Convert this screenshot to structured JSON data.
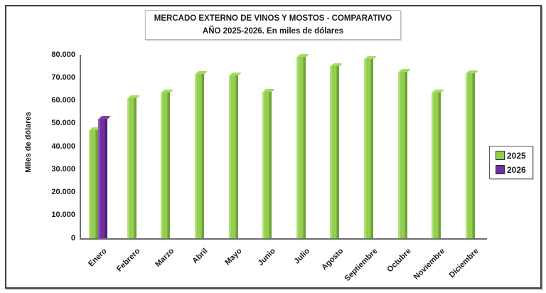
{
  "chart_data": {
    "type": "bar",
    "title": "MERCADO EXTERNO DE VINOS Y MOSTOS - COMPARATIVO",
    "subtitle": "AÑO 2025-2026. En miles de dólares",
    "ylabel": "Miles de dólares",
    "xlabel": "",
    "categories": [
      "Enero",
      "Febrero",
      "Marzo",
      "Abril",
      "Mayo",
      "Junio",
      "Julio",
      "Agosto",
      "Septiembre",
      "Octubre",
      "Noviembre",
      "Diciembre"
    ],
    "series": [
      {
        "name": "2025",
        "color": "#92d050",
        "values": [
          47000,
          61000,
          63500,
          71500,
          71000,
          64000,
          79000,
          75000,
          78000,
          72500,
          63500,
          72000
        ]
      },
      {
        "name": "2026",
        "color": "#7030a0",
        "values": [
          52000,
          null,
          null,
          null,
          null,
          null,
          null,
          null,
          null,
          null,
          null,
          null
        ]
      }
    ],
    "ylim": [
      0,
      80000
    ],
    "ytick_step": 10000,
    "ytick_labels": [
      "0",
      "10.000",
      "20.000",
      "30.000",
      "40.000",
      "50.000",
      "60.000",
      "70.000",
      "80.000"
    ],
    "grid": false,
    "bar_style": "3d-cylinder-like beveled columns",
    "legend_position": "right",
    "legend": [
      {
        "label": "2025",
        "color": "#92d050"
      },
      {
        "label": "2026",
        "color": "#7030a0"
      }
    ]
  },
  "colors": {
    "bar_2025": "#92d050",
    "bar_2026": "#7030a0",
    "axis_line": "#6e6e6e",
    "frame_border": "#3f3f3f",
    "text": "#1a1a1a"
  }
}
